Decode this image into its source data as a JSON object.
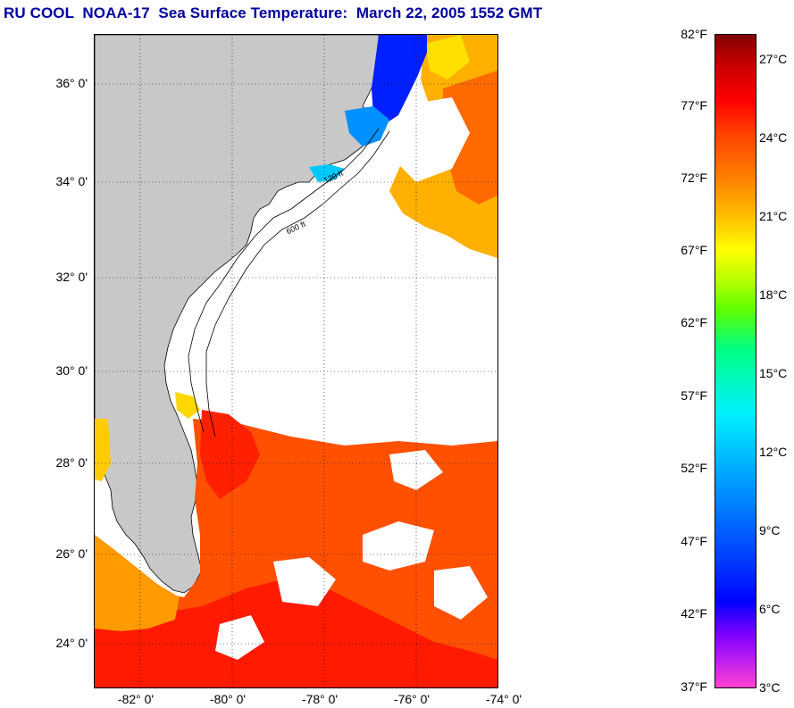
{
  "title": "RU COOL  NOAA-17  Sea Surface Temperature:  March 22, 2005 1552 GMT",
  "map": {
    "lat_ticks": [
      "36° 0'",
      "34° 0'",
      "32° 0'",
      "30° 0'",
      "28° 0'",
      "26° 0'",
      "24° 0'"
    ],
    "lon_ticks": [
      "-82° 0'",
      "-80° 0'",
      "-78° 0'",
      "-76° 0'",
      "-74° 0'"
    ],
    "contour_labels": [
      "120 ft",
      "600 ft"
    ],
    "land_color": "#c8c8c8",
    "cloud_color": "#ffffff"
  },
  "colorbar": {
    "fahrenheit": [
      "82°F",
      "77°F",
      "72°F",
      "67°F",
      "62°F",
      "57°F",
      "52°F",
      "47°F",
      "42°F",
      "37°F"
    ],
    "celsius": [
      "27°C",
      "24°C",
      "21°C",
      "18°C",
      "15°C",
      "12°C",
      "9°C",
      "6°C",
      "3°C"
    ],
    "range_f": [
      37,
      82
    ],
    "colors": [
      "#ff40d0",
      "#8000ff",
      "#0000ff",
      "#0080ff",
      "#00e0ff",
      "#00ff80",
      "#b0ff00",
      "#ffff00",
      "#ffa000",
      "#ff4000",
      "#ff0000",
      "#800000"
    ]
  }
}
